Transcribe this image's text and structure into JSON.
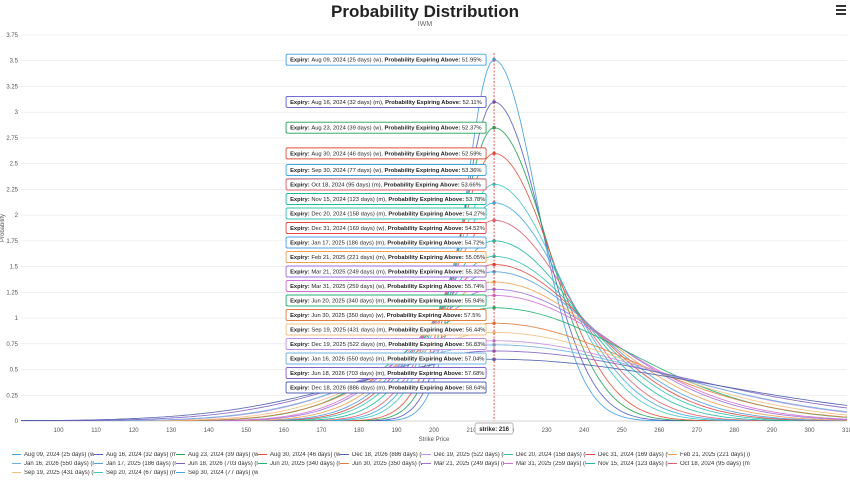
{
  "header": {
    "title": "Probability Distribution",
    "subtitle": "IWM",
    "menu_icon": "hamburger-menu-icon"
  },
  "chart_data": {
    "type": "line",
    "title": "Probability Distribution",
    "subtitle": "IWM",
    "xlabel": "Strike Price",
    "ylabel": "Probability",
    "xlim": [
      90,
      310
    ],
    "ylim": [
      0,
      3.75
    ],
    "x_ticks": [
      100,
      110,
      120,
      130,
      140,
      150,
      160,
      170,
      180,
      190,
      200,
      210,
      220,
      230,
      240,
      250,
      260,
      270,
      280,
      290,
      300,
      310
    ],
    "y_ticks": [
      0,
      0.25,
      0.5,
      0.75,
      1,
      1.25,
      1.5,
      1.75,
      2,
      2.25,
      2.5,
      2.75,
      3,
      3.25,
      3.5,
      3.75
    ],
    "grid": "horizontal",
    "legend_position": "bottom",
    "strike": {
      "x": 216,
      "label": "strike: 216",
      "color": "#e03030"
    },
    "tooltip_labels": {
      "expiry": "Expiry:",
      "probability": "Probability Expiring Above:"
    },
    "series": [
      {
        "name": "Aug 09, 2024 (25 days) (w)",
        "peak": 3.51,
        "sigma": 8.5,
        "prob": "51.95%",
        "color": "#3fa0e0"
      },
      {
        "name": "Aug 16, 2024 (32 days) (m)",
        "peak": 3.1,
        "sigma": 9.5,
        "prob": "52.11%",
        "color": "#5a5ac8"
      },
      {
        "name": "Aug 23, 2024 (39 days) (w)",
        "peak": 2.85,
        "sigma": 10.5,
        "prob": "52.37%",
        "color": "#20a050"
      },
      {
        "name": "Aug 30, 2024 (46 days) (w)",
        "peak": 2.6,
        "sigma": 11.5,
        "prob": "52.59%",
        "color": "#e0503a"
      },
      {
        "name": "Sep 20, 2024 (67 days) (m)",
        "peak": 2.3,
        "sigma": 13,
        "prob": "53.07%",
        "color": "#40c8c0"
      },
      {
        "name": "Sep 30, 2024 (77 days) (w)",
        "peak": 2.12,
        "sigma": 14,
        "prob": "53.36%",
        "color": "#40a8e0"
      },
      {
        "name": "Oct 18, 2024 (95 days) (m)",
        "peak": 1.95,
        "sigma": 15,
        "prob": "53.66%",
        "color": "#e06070"
      },
      {
        "name": "Nov 15, 2024 (123 days) (m)",
        "peak": 1.75,
        "sigma": 16.5,
        "prob": "53.78%",
        "color": "#20b8a0"
      },
      {
        "name": "Dec 20, 2024 (158 days) (m)",
        "peak": 1.6,
        "sigma": 18,
        "prob": "54.27%",
        "color": "#30c0b0"
      },
      {
        "name": "Dec 31, 2024 (169 days) (w)",
        "peak": 1.52,
        "sigma": 19,
        "prob": "54.52%",
        "color": "#e04848"
      },
      {
        "name": "Jan 17, 2025 (186 days) (m)",
        "peak": 1.45,
        "sigma": 20,
        "prob": "54.72%",
        "color": "#50a0e0"
      },
      {
        "name": "Feb 21, 2025 (221 days) (m)",
        "peak": 1.35,
        "sigma": 21.5,
        "prob": "55.05%",
        "color": "#f0a050"
      },
      {
        "name": "Mar 21, 2025 (249 days) (m)",
        "peak": 1.28,
        "sigma": 23,
        "prob": "55.32%",
        "color": "#a070d8"
      },
      {
        "name": "Mar 31, 2025 (259 days) (w)",
        "peak": 1.22,
        "sigma": 24,
        "prob": "55.74%",
        "color": "#d070d0"
      },
      {
        "name": "Jun 20, 2025 (340 days) (m)",
        "peak": 1.1,
        "sigma": 26.5,
        "prob": "55.94%",
        "color": "#20b070"
      },
      {
        "name": "Jun 30, 2025 (350 days) (w)",
        "peak": 0.95,
        "sigma": 27.5,
        "prob": "57.5%",
        "color": "#e08040"
      },
      {
        "name": "Sep 19, 2025 (431 days) (m)",
        "peak": 0.86,
        "sigma": 30,
        "prob": "56.44%",
        "color": "#f0c080"
      },
      {
        "name": "Dec 19, 2025 (522 days) (m)",
        "peak": 0.78,
        "sigma": 33,
        "prob": "56.83%",
        "color": "#c090e0"
      },
      {
        "name": "Jan 16, 2026 (550 days) (m)",
        "peak": 0.74,
        "sigma": 34,
        "prob": "57.04%",
        "color": "#70b0e0"
      },
      {
        "name": "Jun 18, 2026 (703 days) (m)",
        "peak": 0.68,
        "sigma": 38,
        "prob": "57.68%",
        "color": "#8060c0"
      },
      {
        "name": "Dec 18, 2026 (886 days) (m)",
        "peak": 0.6,
        "sigma": 42,
        "prob": "58.64%",
        "color": "#5060b0"
      }
    ]
  },
  "legend": [
    [
      "Aug 09, 2024 (25 days) (w)",
      "#3fa0e0"
    ],
    [
      "Aug 16, 2024 (32 days) (m)",
      "#5a5ac8"
    ],
    [
      "Aug 23, 2024 (39 days) (w)",
      "#20a050"
    ],
    [
      "Aug 30, 2024 (46 days) (w)",
      "#e0503a"
    ],
    [
      "Dec 18, 2026 (886 days) (m)",
      "#5060b0"
    ],
    [
      "Dec 19, 2025 (522 days) (m)",
      "#c090e0"
    ],
    [
      "Dec 20, 2024 (158 days) (m)",
      "#30c0b0"
    ],
    [
      "Dec 31, 2024 (169 days) (w)",
      "#e04848"
    ],
    [
      "Feb 21, 2025 (221 days) (m)",
      "#f0a050"
    ],
    [
      "Jan 16, 2026 (550 days) (m)",
      "#70b0e0"
    ],
    [
      "Jan 17, 2025 (186 days) (m)",
      "#50a0e0"
    ],
    [
      "Jun 18, 2026 (703 days) (m)",
      "#8060c0"
    ],
    [
      "Jun 20, 2025 (340 days) (m)",
      "#20b070"
    ],
    [
      "Jun 30, 2025 (350 days) (w)",
      "#e08040"
    ],
    [
      "Mar 21, 2025 (249 days) (m)",
      "#a070d8"
    ],
    [
      "Mar 31, 2025 (259 days) (w)",
      "#d070d0"
    ],
    [
      "Nov 15, 2024 (123 days) (m)",
      "#20b8a0"
    ],
    [
      "Oct 18, 2024 (95 days) (m)",
      "#e06070"
    ],
    [
      "Sep 19, 2025 (431 days) (m)",
      "#f0c080"
    ],
    [
      "Sep 20, 2024 (67 days) (m)",
      "#40c8c0"
    ],
    [
      "Sep 30, 2024 (77 days) (w)",
      "#40a8e0"
    ]
  ]
}
